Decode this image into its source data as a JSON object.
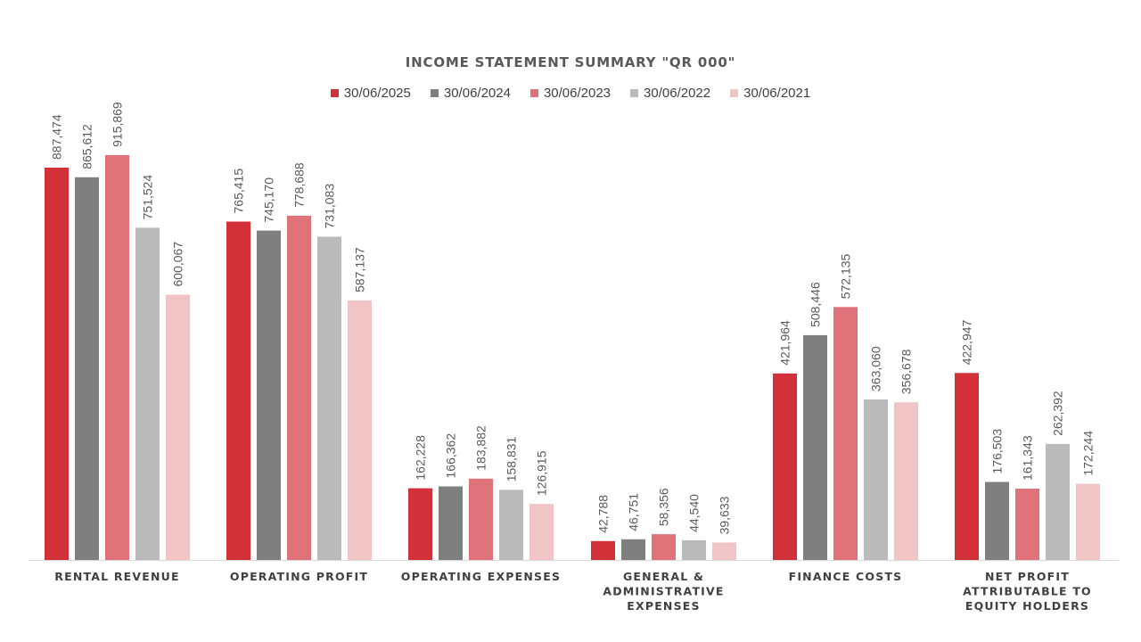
{
  "chart_data": {
    "type": "bar",
    "title": "INCOME STATEMENT SUMMARY \"QR 000\"",
    "categories": [
      [
        "RENTAL REVENUE"
      ],
      [
        "OPERATING PROFIT"
      ],
      [
        "OPERATING EXPENSES"
      ],
      [
        "GENERAL &",
        "ADMINISTRATIVE",
        "EXPENSES"
      ],
      [
        "FINANCE COSTS"
      ],
      [
        "NET PROFIT",
        "ATTRIBUTABLE TO",
        "EQUITY HOLDERS"
      ]
    ],
    "series": [
      {
        "name": "30/06/2025",
        "color": "#d2313a",
        "values": [
          887474,
          765415,
          162228,
          42788,
          421964,
          422947
        ],
        "labels": [
          "887,474",
          "765,415",
          "162,228",
          "42,788",
          "421,964",
          "422,947"
        ]
      },
      {
        "name": "30/06/2024",
        "color": "#7f7f7f",
        "values": [
          865612,
          745170,
          166362,
          46751,
          508446,
          176503
        ],
        "labels": [
          "865,612",
          "745,170",
          "166,362",
          "46,751",
          "508,446",
          "176,503"
        ]
      },
      {
        "name": "30/06/2023",
        "color": "#e0737a",
        "values": [
          915869,
          778688,
          183882,
          58356,
          572135,
          161343
        ],
        "labels": [
          "915,869",
          "778,688",
          "183,882",
          "58,356",
          "572,135",
          "161,343"
        ]
      },
      {
        "name": "30/06/2022",
        "color": "#bababa",
        "values": [
          751524,
          731083,
          158831,
          44540,
          363060,
          262392
        ],
        "labels": [
          "751,524",
          "731,083",
          "158,831",
          "44,540",
          "363,060",
          "262,392"
        ]
      },
      {
        "name": "30/06/2021",
        "color": "#f1c4c6",
        "values": [
          600067,
          587137,
          126915,
          39633,
          356678,
          172244
        ],
        "labels": [
          "600,067",
          "587,137",
          "126,915",
          "39,633",
          "356,678",
          "172,244"
        ]
      }
    ],
    "ylim": [
      0,
      1000000
    ],
    "legend_position": "top",
    "grid": false,
    "data_labels": "rotated vertical above bars"
  }
}
